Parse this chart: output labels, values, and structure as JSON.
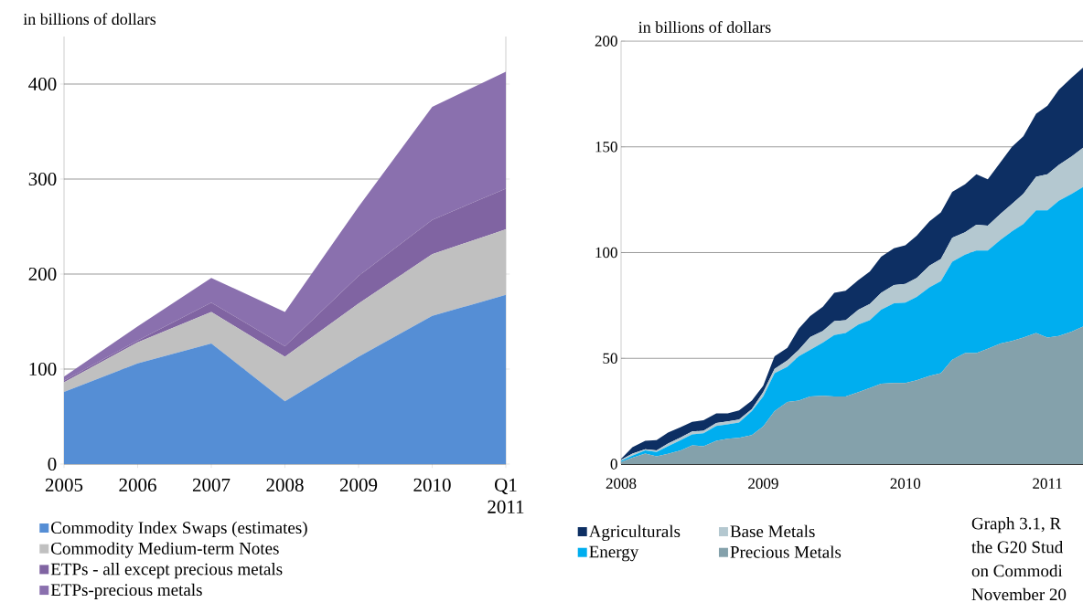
{
  "chart_data": [
    {
      "type": "area",
      "stacked": true,
      "ylabel": "in billions of dollars",
      "categories": [
        "2005",
        "2006",
        "2007",
        "2008",
        "2009",
        "2010",
        "Q1 2011"
      ],
      "series": [
        {
          "name": "Commodity Index Swaps (estimates)",
          "color": "#558ed5",
          "values": [
            76,
            106,
            127,
            66,
            113,
            156,
            178
          ]
        },
        {
          "name": "Commodity Medium-term Notes",
          "color": "#c0c0c0",
          "values": [
            10,
            22,
            33,
            47,
            56,
            65,
            69
          ]
        },
        {
          "name": "ETPs - all except precious metals",
          "color": "#8064a2",
          "values": [
            2,
            2,
            10,
            11,
            29,
            36,
            43
          ]
        },
        {
          "name": "ETPs-precious metals",
          "color": "#8a70ae",
          "values": [
            4,
            15,
            26,
            36,
            73,
            119,
            123
          ]
        }
      ],
      "ylim": [
        0,
        450
      ],
      "yticks": [
        0,
        100,
        200,
        300,
        400
      ],
      "grid": "y",
      "legend": "bottom"
    },
    {
      "type": "area",
      "stacked": true,
      "ylabel": "in billions of dollars",
      "x": [
        "2008-01",
        "2008-02",
        "2008-03",
        "2008-04",
        "2008-05",
        "2008-06",
        "2008-07",
        "2008-08",
        "2008-09",
        "2008-10",
        "2008-11",
        "2008-12",
        "2009-01",
        "2009-02",
        "2009-03",
        "2009-04",
        "2009-05",
        "2009-06",
        "2009-07",
        "2009-08",
        "2009-09",
        "2009-10",
        "2009-11",
        "2009-12",
        "2010-01",
        "2010-02",
        "2010-03",
        "2010-04",
        "2010-05",
        "2010-06",
        "2010-07",
        "2010-08",
        "2010-09",
        "2010-10",
        "2010-11",
        "2010-12",
        "2011-01",
        "2011-02",
        "2011-03",
        "2011-04"
      ],
      "series": [
        {
          "name": "Precious Metals",
          "color": "#84a1ab",
          "values": [
            1,
            3,
            5,
            3.7,
            4.9,
            6.5,
            8.9,
            8.4,
            11,
            12,
            12.4,
            13.7,
            17.8,
            25,
            29.4,
            30,
            32,
            32.3,
            32,
            32,
            34,
            36,
            38,
            38.3,
            38.3,
            39.6,
            41.7,
            43,
            49.3,
            52.5,
            52.5,
            54.5,
            57,
            58.2,
            59.8,
            62,
            59.8,
            60.6,
            62.6,
            65
          ]
        },
        {
          "name": "Energy",
          "color": "#00aeef",
          "values": [
            0.5,
            1,
            1.5,
            2,
            3.5,
            4.8,
            5.1,
            6.2,
            7,
            6.8,
            7.3,
            11.3,
            14.2,
            18,
            16.6,
            21,
            22,
            25.1,
            29,
            30,
            32,
            32,
            35,
            37.7,
            38,
            39.4,
            41.9,
            43.5,
            46.4,
            46.5,
            48.5,
            46.5,
            49,
            51.8,
            53.7,
            58,
            60.2,
            63.9,
            65.1,
            66
          ]
        },
        {
          "name": "Base Metals",
          "color": "#b4c8d0",
          "values": [
            0.5,
            1,
            0.5,
            0.8,
            1.3,
            1.3,
            1.4,
            1.2,
            1.4,
            1.4,
            1.3,
            1,
            2,
            2,
            3,
            3,
            6,
            5.6,
            6.6,
            6,
            7,
            7.7,
            8,
            8.7,
            8.9,
            9,
            10.2,
            10.5,
            11.3,
            10.6,
            12.2,
            11.7,
            12.4,
            13,
            14.2,
            15.8,
            17,
            17,
            17.8,
            18.6
          ]
        },
        {
          "name": "Agriculturals",
          "color": "#0d2f63",
          "values": [
            0.5,
            3,
            4,
            4.8,
            5.2,
            4.9,
            4.6,
            4.9,
            4.6,
            3.8,
            4.4,
            4,
            3,
            6,
            6,
            10,
            10,
            11.4,
            13.4,
            14,
            14,
            15.3,
            17,
            17.3,
            18.3,
            20,
            21,
            22,
            21.7,
            22.7,
            23.8,
            22,
            24.4,
            27,
            27.3,
            29.9,
            32.4,
            35.5,
            37.2,
            37.9
          ]
        }
      ],
      "xlim": [
        "2008-01",
        "2011-04"
      ],
      "xticks": [
        "2008",
        "2009",
        "2010",
        "2011"
      ],
      "ylim": [
        0,
        200
      ],
      "yticks": [
        0,
        50,
        100,
        150,
        200
      ],
      "grid": "y",
      "legend": "bottom",
      "annotations": [
        "Graph 3.1, R",
        "the G20 Stud",
        "on Commodi",
        "November 20"
      ]
    }
  ]
}
